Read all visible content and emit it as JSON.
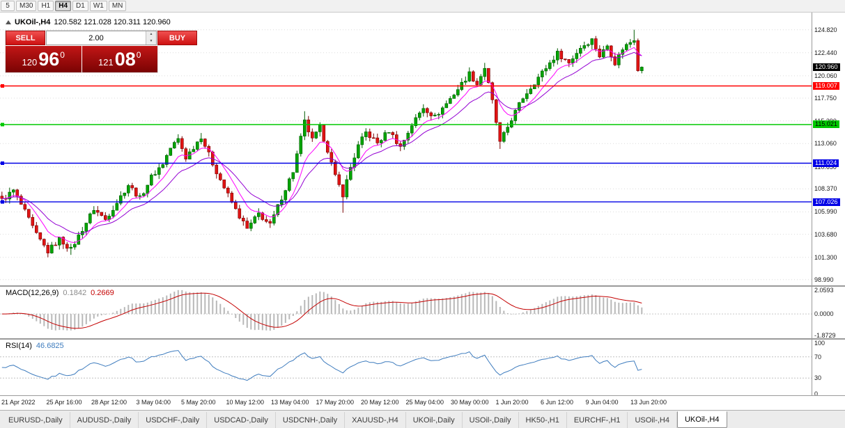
{
  "colors": {
    "up": "#00a400",
    "up_stroke": "#005c00",
    "down": "#e01414",
    "down_stroke": "#780000",
    "ma_fast": "#ff00ff",
    "ma_slow": "#9400d3",
    "macd_hist": "#b8b8b8",
    "macd_signal": "#c40000",
    "rsi_line": "#3e7cbe",
    "current_price_bg": "#000000"
  },
  "toolbar": {
    "timeframes": [
      "5",
      "M30",
      "H1",
      "H4",
      "D1",
      "W1",
      "MN"
    ],
    "active": "H4"
  },
  "chart": {
    "title": "UKOil-,H4",
    "ohlc_text": "120.582 121.028 120.311 120.960"
  },
  "trade": {
    "sell_label": "SELL",
    "buy_label": "BUY",
    "volume": "2.00",
    "bid": {
      "prefix": "120",
      "big": "96",
      "sup": "0"
    },
    "ask": {
      "prefix": "121",
      "big": "08",
      "sup": "0"
    }
  },
  "chart_data": {
    "type": "candlestick",
    "symbol": "UKOil-",
    "timeframe": "H4",
    "n_candles": 168,
    "last_ohlc": {
      "o": 120.582,
      "h": 121.028,
      "l": 120.311,
      "c": 120.96
    },
    "current_price_label": "120.960",
    "close_waypoints": [
      [
        0,
        107.2
      ],
      [
        3,
        108.2
      ],
      [
        6,
        106.0
      ],
      [
        9,
        103.6
      ],
      [
        12,
        101.9
      ],
      [
        15,
        103.2
      ],
      [
        18,
        102.1
      ],
      [
        21,
        104.2
      ],
      [
        24,
        106.3
      ],
      [
        27,
        105.2
      ],
      [
        30,
        107.0
      ],
      [
        33,
        108.8
      ],
      [
        36,
        107.4
      ],
      [
        39,
        109.6
      ],
      [
        42,
        111.0
      ],
      [
        44,
        112.6
      ],
      [
        46,
        113.5
      ],
      [
        48,
        111.6
      ],
      [
        50,
        112.7
      ],
      [
        52,
        113.8
      ],
      [
        55,
        111.0
      ],
      [
        58,
        108.5
      ],
      [
        61,
        106.2
      ],
      [
        64,
        104.2
      ],
      [
        67,
        105.8
      ],
      [
        70,
        104.6
      ],
      [
        73,
        107.5
      ],
      [
        76,
        110.2
      ],
      [
        79,
        115.3
      ],
      [
        81,
        113.4
      ],
      [
        83,
        114.7
      ],
      [
        85,
        112.4
      ],
      [
        87,
        109.6
      ],
      [
        89,
        107.8
      ],
      [
        91,
        110.6
      ],
      [
        93,
        112.8
      ],
      [
        95,
        114.2
      ],
      [
        98,
        113.1
      ],
      [
        101,
        114.4
      ],
      [
        104,
        112.7
      ],
      [
        107,
        115.0
      ],
      [
        110,
        116.8
      ],
      [
        113,
        115.8
      ],
      [
        116,
        117.2
      ],
      [
        119,
        118.7
      ],
      [
        122,
        120.3
      ],
      [
        124,
        119.2
      ],
      [
        126,
        120.9
      ],
      [
        128,
        117.4
      ],
      [
        130,
        113.1
      ],
      [
        133,
        115.6
      ],
      [
        136,
        117.8
      ],
      [
        139,
        119.4
      ],
      [
        142,
        120.9
      ],
      [
        145,
        122.4
      ],
      [
        148,
        121.4
      ],
      [
        151,
        123.0
      ],
      [
        154,
        123.8
      ],
      [
        156,
        122.1
      ],
      [
        158,
        123.2
      ],
      [
        160,
        121.4
      ],
      [
        162,
        122.9
      ],
      [
        165,
        123.9
      ],
      [
        167,
        121.0
      ]
    ],
    "wick_overrides": [
      {
        "i": 12,
        "l": 101.3
      },
      {
        "i": 18,
        "l": 101.55
      },
      {
        "i": 52,
        "h": 114.15
      },
      {
        "i": 79,
        "h": 116.4
      },
      {
        "i": 89,
        "l": 105.9
      },
      {
        "i": 126,
        "h": 121.4
      },
      {
        "i": 130,
        "l": 112.5
      },
      {
        "i": 165,
        "h": 124.82
      },
      {
        "i": 167,
        "h": 121.028,
        "l": 120.311
      }
    ],
    "levels": [
      {
        "price": 119.007,
        "label": "119.007",
        "color": "#ff0000",
        "text_color": "#ffffff"
      },
      {
        "price": 115.021,
        "label": "115.021",
        "color": "#00c800",
        "text_color": "#000000"
      },
      {
        "price": 111.024,
        "label": "111.024",
        "color": "#0000e6",
        "text_color": "#ffffff"
      },
      {
        "price": 107.026,
        "label": "107.026",
        "color": "#0000e6",
        "text_color": "#ffffff"
      }
    ],
    "price_ticks": [
      {
        "v": 124.82,
        "t": "124.820"
      },
      {
        "v": 122.44,
        "t": "122.440"
      },
      {
        "v": 120.06,
        "t": "120.060"
      },
      {
        "v": 117.75,
        "t": "117.750"
      },
      {
        "v": 115.39,
        "t": "115.390"
      },
      {
        "v": 113.06,
        "t": "113.060"
      },
      {
        "v": 110.65,
        "t": "110.650"
      },
      {
        "v": 108.37,
        "t": "108.370"
      },
      {
        "v": 105.99,
        "t": "105.990"
      },
      {
        "v": 103.68,
        "t": "103.680"
      },
      {
        "v": 101.3,
        "t": "101.300"
      },
      {
        "v": 98.99,
        "t": "98.990"
      }
    ],
    "time_labels": [
      "21 Apr 2022",
      "25 Apr 16:00",
      "28 Apr 12:00",
      "3 May 04:00",
      "5 May 20:00",
      "10 May 12:00",
      "13 May 04:00",
      "17 May 20:00",
      "20 May 12:00",
      "25 May 04:00",
      "30 May 00:00",
      "1 Jun 20:00",
      "6 Jun 12:00",
      "9 Jun 04:00",
      "13 Jun 20:00"
    ]
  },
  "macd": {
    "name": "MACD(12,26,9)",
    "value_main": "0.1842",
    "value_signal": "0.2669",
    "peak_scale": 2.0593,
    "scale_labels": [
      {
        "v": 2.0593,
        "t": "2.0593"
      },
      {
        "v": 0,
        "t": "0.0000"
      },
      {
        "v": -1.8729,
        "t": "-1.8729"
      }
    ]
  },
  "rsi": {
    "name": "RSI(14)",
    "value": "46.6825",
    "period": 14,
    "scale_labels": [
      {
        "v": 100,
        "t": "100"
      },
      {
        "v": 70,
        "t": "70"
      },
      {
        "v": 30,
        "t": "30"
      },
      {
        "v": 0,
        "t": "0"
      }
    ],
    "level_lines": [
      70,
      30
    ]
  },
  "tabs": {
    "items": [
      "EURUSD-,Daily",
      "AUDUSD-,Daily",
      "USDCHF-,Daily",
      "USDCAD-,Daily",
      "USDCNH-,Daily",
      "XAUUSD-,H4",
      "UKOil-,Daily",
      "USOil-,Daily",
      "HK50-,H1",
      "EURCHF-,H1",
      "USOil-,H4",
      "UKOil-,H4"
    ],
    "active": "UKOil-,H4"
  }
}
